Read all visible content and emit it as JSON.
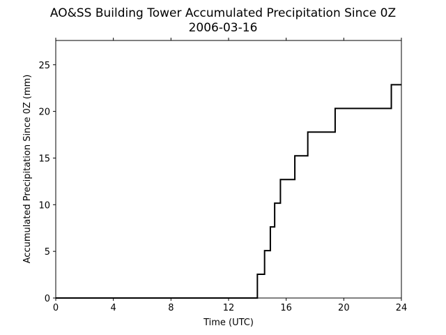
{
  "chart_data": {
    "type": "line",
    "title": "AO&SS Building Tower Accumulated Precipitation Since 0Z",
    "subtitle": "2006-03-16",
    "xlabel": "Time (UTC)",
    "ylabel": "Accumulated Precipitation Since 0Z (mm)",
    "xlim": [
      0,
      24
    ],
    "ylim": [
      0,
      27.6
    ],
    "x_ticks": [
      "0",
      "4",
      "8",
      "12",
      "16",
      "20",
      "24"
    ],
    "y_ticks": [
      "0",
      "5",
      "10",
      "15",
      "20",
      "25"
    ],
    "grid": false,
    "step": true,
    "series": [
      {
        "color": "#000000",
        "x": [
          0,
          14.0,
          14.0,
          14.5,
          14.5,
          14.9,
          14.9,
          15.2,
          15.2,
          15.6,
          15.6,
          16.6,
          16.6,
          17.5,
          17.5,
          19.4,
          19.4,
          23.3,
          23.3,
          24
        ],
        "y": [
          0,
          0,
          2.54,
          2.54,
          5.08,
          5.08,
          7.62,
          7.62,
          10.16,
          10.16,
          12.7,
          12.7,
          15.24,
          15.24,
          17.78,
          17.78,
          20.32,
          20.32,
          22.86,
          22.86
        ]
      }
    ]
  }
}
